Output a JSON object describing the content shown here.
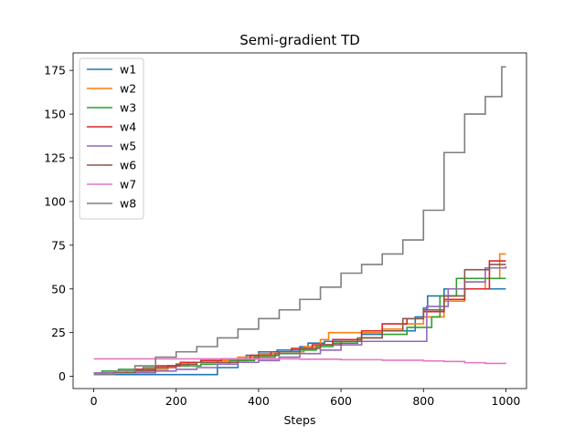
{
  "chart_data": {
    "type": "line",
    "title": "Semi-gradient TD",
    "xlabel": "Steps",
    "ylabel": "",
    "xlim": [
      -50,
      1050
    ],
    "ylim": [
      -7,
      185
    ],
    "xticks": [
      0,
      200,
      400,
      600,
      800,
      1000
    ],
    "yticks": [
      0,
      25,
      50,
      75,
      100,
      125,
      150,
      175
    ],
    "legend_position": "upper-left",
    "grid": false,
    "series": [
      {
        "name": "w1",
        "color": "#1f77b4",
        "x": [
          0,
          295,
          300,
          350,
          370,
          400,
          445,
          500,
          520,
          560,
          600,
          650,
          700,
          780,
          800,
          810,
          850,
          900,
          1000
        ],
        "y": [
          1,
          1,
          5,
          9,
          12,
          14,
          15,
          17,
          19,
          20,
          20,
          24,
          26,
          34,
          39,
          46,
          50,
          50,
          50
        ]
      },
      {
        "name": "w2",
        "color": "#ff7f0e",
        "x": [
          0,
          30,
          80,
          130,
          180,
          230,
          300,
          350,
          400,
          450,
          510,
          550,
          570,
          650,
          700,
          750,
          800,
          850,
          900,
          950,
          985,
          1000
        ],
        "y": [
          1,
          2,
          3,
          4,
          6,
          8,
          9,
          11,
          13,
          14,
          17,
          21,
          25,
          25,
          27,
          30,
          34,
          43,
          50,
          56,
          70,
          70
        ]
      },
      {
        "name": "w3",
        "color": "#2ca02c",
        "x": [
          0,
          20,
          60,
          120,
          180,
          260,
          330,
          390,
          440,
          500,
          540,
          580,
          640,
          700,
          760,
          820,
          840,
          880,
          950,
          1000
        ],
        "y": [
          2,
          3,
          4,
          5,
          6,
          7,
          9,
          11,
          13,
          15,
          17,
          19,
          22,
          24,
          28,
          34,
          46,
          56,
          56,
          56
        ]
      },
      {
        "name": "w4",
        "color": "#d62728",
        "x": [
          0,
          50,
          100,
          150,
          210,
          260,
          310,
          380,
          430,
          480,
          530,
          580,
          650,
          700,
          760,
          800,
          850,
          900,
          960,
          1000
        ],
        "y": [
          1,
          2,
          4,
          6,
          8,
          9,
          10,
          12,
          14,
          16,
          18,
          21,
          26,
          30,
          33,
          37,
          44,
          50,
          66,
          66
        ]
      },
      {
        "name": "w5",
        "color": "#9467bd",
        "x": [
          0,
          150,
          200,
          250,
          300,
          350,
          400,
          450,
          500,
          550,
          600,
          650,
          700,
          750,
          800,
          808,
          860,
          900,
          950,
          1000
        ],
        "y": [
          2,
          3,
          4,
          5,
          7,
          8,
          9,
          11,
          13,
          15,
          18,
          20,
          20,
          20,
          20,
          40,
          50,
          54,
          62,
          63
        ]
      },
      {
        "name": "w6",
        "color": "#8c564b",
        "x": [
          0,
          50,
          100,
          150,
          200,
          250,
          300,
          350,
          400,
          450,
          500,
          550,
          600,
          650,
          700,
          750,
          800,
          850,
          900,
          960,
          1000
        ],
        "y": [
          1,
          2,
          3,
          5,
          7,
          8,
          8,
          10,
          12,
          14,
          16,
          18,
          20,
          22,
          26,
          33,
          38,
          46,
          61,
          64,
          64
        ]
      },
      {
        "name": "w7",
        "color": "#e377c2",
        "x": [
          0,
          100,
          200,
          300,
          400,
          500,
          600,
          700,
          800,
          850,
          900,
          950,
          1000
        ],
        "y": [
          10,
          10,
          10,
          10,
          10,
          9.8,
          9.5,
          9.2,
          8.8,
          8.5,
          7.8,
          7.4,
          7.2
        ]
      },
      {
        "name": "w8",
        "color": "#7f7f7f",
        "x": [
          0,
          50,
          100,
          150,
          200,
          250,
          300,
          350,
          400,
          450,
          500,
          550,
          600,
          650,
          700,
          750,
          800,
          850,
          900,
          950,
          990,
          1000
        ],
        "y": [
          1,
          3,
          6,
          11,
          14,
          17,
          22,
          27,
          33,
          38,
          44,
          51,
          59,
          64,
          70,
          78,
          95,
          128,
          150,
          160,
          177,
          177
        ]
      }
    ]
  }
}
